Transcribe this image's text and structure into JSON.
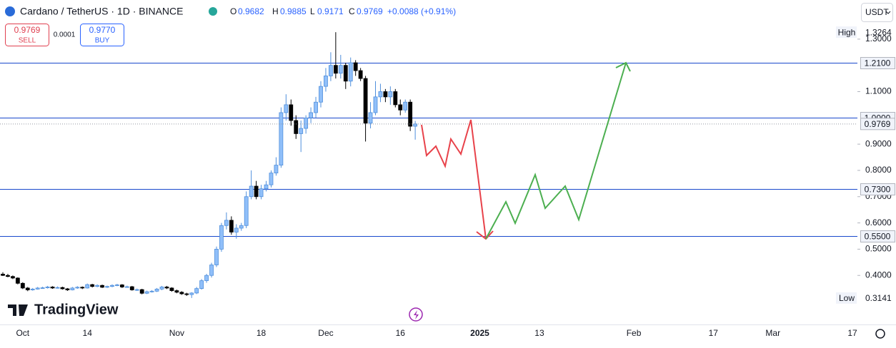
{
  "header": {
    "symbol": "Cardano / TetherUS · 1D · BINANCE",
    "o": "O",
    "h": "H",
    "l": "L",
    "c": "C",
    "change": "+0.0088 (+0.91%)"
  },
  "trade": {
    "sell": "SELL",
    "spread": "0.0001",
    "buy_price": "0.9770",
    "buy": "BUY"
  },
  "currency": "USDT",
  "brand": "TradingView",
  "chart_data": {
    "type": "candlestick",
    "up_color": "#90bff9",
    "up_border": "#4f8fdc",
    "down_color": "#000000",
    "categories": [
      null,
      null,
      null,
      null,
      "Oct",
      null,
      null,
      null,
      null,
      null,
      null,
      null,
      null,
      null,
      null,
      null,
      null,
      "14",
      null,
      null,
      null,
      null,
      null,
      null,
      null,
      null,
      null,
      null,
      null,
      null,
      null,
      null,
      null,
      null,
      null,
      "Nov",
      null,
      null,
      null,
      null,
      null,
      null,
      null,
      null,
      null,
      null,
      null,
      null,
      null,
      null,
      null,
      null,
      "18",
      null,
      null,
      null,
      null,
      null,
      null,
      null,
      null,
      null,
      null,
      null,
      null,
      "Dec",
      null,
      null,
      null,
      null,
      null,
      null,
      null,
      null,
      null,
      null,
      null,
      null,
      null,
      null,
      "16",
      null,
      null,
      null,
      null,
      null,
      null,
      null,
      null,
      null,
      null,
      null,
      null,
      null,
      null,
      null,
      "2025",
      null,
      null,
      null,
      null,
      null,
      null,
      null,
      null,
      null,
      null,
      null,
      "13",
      null,
      null,
      null,
      null,
      null,
      null,
      null,
      null,
      null,
      null,
      null,
      null,
      null,
      null,
      null,
      null,
      null,
      null,
      "Feb",
      null,
      null,
      null,
      null,
      null,
      null,
      null,
      null,
      null,
      null,
      null,
      null,
      null,
      null,
      null,
      "17",
      null,
      null,
      null,
      null,
      null,
      null,
      null,
      null,
      null,
      null,
      null,
      "Mar",
      null,
      null,
      null,
      null,
      null,
      null,
      null,
      null,
      null,
      null,
      null,
      null,
      null,
      null,
      null,
      "17"
    ],
    "open": [
      0.405,
      0.4,
      0.396,
      0.39,
      0.37,
      0.352,
      0.345,
      0.348,
      0.352,
      0.353,
      0.356,
      0.352,
      0.354,
      0.349,
      0.345,
      0.352,
      0.355,
      0.352,
      0.365,
      0.358,
      0.362,
      0.355,
      0.358,
      0.362,
      0.364,
      0.356,
      0.357,
      0.345,
      0.346,
      0.332,
      0.338,
      0.34,
      0.348,
      0.356,
      0.352,
      0.342,
      0.336,
      0.33,
      0.327,
      0.333,
      0.35,
      0.38,
      0.4,
      0.44,
      0.5,
      0.59,
      0.61,
      0.565,
      0.58,
      0.59,
      0.7,
      0.74,
      0.7,
      0.73,
      0.745,
      0.79,
      0.82,
      1.02,
      1.05,
      0.99,
      0.94,
      0.96,
      1.0,
      1.02,
      1.06,
      1.12,
      1.16,
      1.2,
      1.17,
      1.2,
      1.14,
      1.21,
      1.18,
      1.15,
      0.98,
      1.02,
      1.08,
      1.1,
      1.08,
      1.1,
      1.05,
      1.03,
      1.06,
      0.9682,
      null,
      null,
      null,
      null,
      null,
      null,
      null,
      null,
      null,
      null,
      null,
      null,
      null,
      null,
      null,
      null,
      null,
      null,
      null,
      null,
      null,
      null,
      null,
      null,
      null,
      null,
      null,
      null,
      null,
      null,
      null,
      null,
      null,
      null,
      null,
      null,
      null,
      null,
      null,
      null,
      null,
      null,
      null,
      null,
      null,
      null,
      null,
      null,
      null,
      null,
      null,
      null,
      null,
      null,
      null,
      null,
      null,
      null,
      null,
      null,
      null,
      null,
      null,
      null,
      null,
      null,
      null,
      null,
      null,
      null,
      null,
      null,
      null,
      null,
      null,
      null,
      null,
      null,
      null,
      null,
      null,
      null,
      null,
      null,
      null,
      null,
      null,
      null
    ],
    "high": [
      0.412,
      0.406,
      0.4,
      0.393,
      0.374,
      0.356,
      0.352,
      0.356,
      0.357,
      0.36,
      0.359,
      0.358,
      0.357,
      0.352,
      0.356,
      0.359,
      0.358,
      0.369,
      0.368,
      0.366,
      0.365,
      0.361,
      0.366,
      0.368,
      0.367,
      0.361,
      0.36,
      0.35,
      0.349,
      0.342,
      0.344,
      0.352,
      0.36,
      0.36,
      0.355,
      0.346,
      0.34,
      0.334,
      0.336,
      0.356,
      0.386,
      0.406,
      0.448,
      0.51,
      0.6,
      0.64,
      0.625,
      0.595,
      0.6,
      0.72,
      0.8,
      0.76,
      0.745,
      0.76,
      0.8,
      0.85,
      1.04,
      1.09,
      1.07,
      1.01,
      0.99,
      1.01,
      1.04,
      1.08,
      1.14,
      1.19,
      1.25,
      1.3264,
      1.24,
      1.21,
      1.23,
      1.22,
      1.19,
      1.16,
      1.06,
      1.14,
      1.13,
      1.11,
      1.12,
      1.11,
      1.07,
      1.07,
      1.07,
      0.9885,
      null,
      null,
      null,
      null,
      null,
      null,
      null,
      null,
      null,
      null,
      null,
      null,
      null,
      null,
      null,
      null,
      null,
      null,
      null,
      null,
      null,
      null,
      null,
      null,
      null,
      null,
      null,
      null,
      null,
      null,
      null,
      null,
      null,
      null,
      null,
      null,
      null,
      null,
      null,
      null,
      null,
      null,
      null,
      null,
      null,
      null,
      null,
      null,
      null,
      null,
      null,
      null,
      null,
      null,
      null,
      null,
      null,
      null,
      null,
      null,
      null,
      null,
      null,
      null,
      null,
      null,
      null,
      null,
      null,
      null,
      null,
      null,
      null,
      null,
      null,
      null,
      null,
      null,
      null,
      null,
      null,
      null,
      null,
      null,
      null,
      null,
      null,
      null
    ],
    "low": [
      0.398,
      0.393,
      0.386,
      0.366,
      0.348,
      0.34,
      0.342,
      0.346,
      0.349,
      0.35,
      0.349,
      0.35,
      0.346,
      0.341,
      0.343,
      0.349,
      0.348,
      0.35,
      0.354,
      0.355,
      0.352,
      0.352,
      0.355,
      0.359,
      0.352,
      0.353,
      0.342,
      0.341,
      0.328,
      0.329,
      0.335,
      0.337,
      0.344,
      0.348,
      0.338,
      0.332,
      0.326,
      0.322,
      0.3141,
      0.329,
      0.346,
      0.372,
      0.392,
      0.432,
      0.49,
      0.575,
      0.555,
      0.54,
      0.57,
      0.58,
      0.69,
      0.69,
      0.69,
      0.72,
      0.735,
      0.78,
      0.81,
      0.99,
      0.97,
      0.92,
      0.87,
      0.94,
      0.98,
      1.0,
      1.04,
      1.1,
      1.14,
      1.15,
      1.15,
      1.11,
      1.12,
      1.16,
      1.14,
      0.91,
      0.96,
      1.01,
      1.06,
      1.06,
      1.05,
      1.04,
      1.01,
      1.02,
      0.95,
      0.9171,
      null,
      null,
      null,
      null,
      null,
      null,
      null,
      null,
      null,
      null,
      null,
      null,
      null,
      null,
      null,
      null,
      null,
      null,
      null,
      null,
      null,
      null,
      null,
      null,
      null,
      null,
      null,
      null,
      null,
      null,
      null,
      null,
      null,
      null,
      null,
      null,
      null,
      null,
      null,
      null,
      null,
      null,
      null,
      null,
      null,
      null,
      null,
      null,
      null,
      null,
      null,
      null,
      null,
      null,
      null,
      null,
      null,
      null,
      null,
      null,
      null,
      null,
      null,
      null,
      null,
      null,
      null,
      null,
      null,
      null,
      null,
      null,
      null,
      null,
      null,
      null,
      null,
      null,
      null,
      null,
      null,
      null,
      null,
      null,
      null,
      null,
      null,
      null
    ],
    "close": [
      0.4,
      0.396,
      0.39,
      0.37,
      0.352,
      0.345,
      0.348,
      0.352,
      0.353,
      0.356,
      0.352,
      0.354,
      0.349,
      0.345,
      0.352,
      0.355,
      0.352,
      0.365,
      0.358,
      0.362,
      0.355,
      0.358,
      0.362,
      0.364,
      0.356,
      0.357,
      0.345,
      0.346,
      0.332,
      0.338,
      0.34,
      0.348,
      0.356,
      0.352,
      0.342,
      0.336,
      0.33,
      0.327,
      0.333,
      0.35,
      0.38,
      0.4,
      0.44,
      0.5,
      0.59,
      0.61,
      0.565,
      0.58,
      0.59,
      0.7,
      0.74,
      0.7,
      0.73,
      0.745,
      0.79,
      0.82,
      1.02,
      1.05,
      0.99,
      0.94,
      0.96,
      1.0,
      1.02,
      1.06,
      1.12,
      1.16,
      1.2,
      1.17,
      1.2,
      1.14,
      1.21,
      1.18,
      1.15,
      0.98,
      1.02,
      1.08,
      1.1,
      1.08,
      1.1,
      1.05,
      1.03,
      1.06,
      0.9682,
      0.9769,
      null,
      null,
      null,
      null,
      null,
      null,
      null,
      null,
      null,
      null,
      null,
      null,
      null,
      null,
      null,
      null,
      null,
      null,
      null,
      null,
      null,
      null,
      null,
      null,
      null,
      null,
      null,
      null,
      null,
      null,
      null,
      null,
      null,
      null,
      null,
      null,
      null,
      null,
      null,
      null,
      null,
      null,
      null,
      null,
      null,
      null,
      null,
      null,
      null,
      null,
      null,
      null,
      null,
      null,
      null,
      null,
      null,
      null,
      null,
      null,
      null,
      null,
      null,
      null,
      null,
      null,
      null,
      null,
      null,
      null,
      null,
      null,
      null,
      null,
      null,
      null,
      null,
      null,
      null,
      null,
      null,
      null,
      null,
      null,
      null,
      null,
      null,
      null
    ],
    "ylim": [
      0.2132,
      1.449
    ],
    "yticks": [
      {
        "value": 1.3,
        "label": "1.3000"
      },
      {
        "value": 1.1,
        "label": "1.1000"
      },
      {
        "value": 0.9,
        "label": "0.9000"
      },
      {
        "value": 0.8,
        "label": "0.8000"
      },
      {
        "value": 0.7,
        "label": "0.7000"
      },
      {
        "value": 0.6,
        "label": "0.6000"
      },
      {
        "value": 0.5,
        "label": "0.5000"
      },
      {
        "value": 0.4,
        "label": "0.4000"
      }
    ],
    "hline_color": "#1848cc",
    "hlines": [
      {
        "value": 1.21,
        "label": "1.2100"
      },
      {
        "value": 1.0,
        "label": "1.0000"
      },
      {
        "value": 0.73,
        "label": "0.7300"
      },
      {
        "value": 0.55,
        "label": "0.5500"
      }
    ],
    "high_label": "High",
    "low_label": "Low"
  }
}
